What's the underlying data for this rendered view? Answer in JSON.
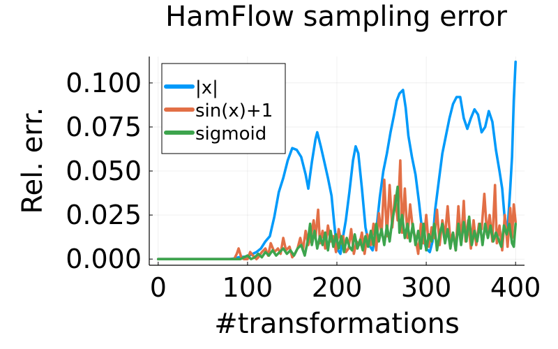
{
  "chart_data": {
    "type": "line",
    "title": "HamFlow sampling error",
    "xlabel": "#transformations",
    "ylabel": "Rel. err.",
    "xlim": [
      -10,
      410
    ],
    "ylim": [
      -0.0035,
      0.115
    ],
    "xticks": [
      0,
      100,
      200,
      300,
      400
    ],
    "xtick_labels": [
      "0",
      "100",
      "200",
      "300",
      "400"
    ],
    "yticks": [
      0.0,
      0.025,
      0.05,
      0.075,
      0.1
    ],
    "ytick_labels": [
      "0.000",
      "0.025",
      "0.050",
      "0.075",
      "0.100"
    ],
    "grid": true,
    "legend_position": "top-left",
    "series": [
      {
        "name": "|x|",
        "color": "#009AFA",
        "points": [
          [
            0,
            0.0
          ],
          [
            80,
            0.0
          ],
          [
            85,
            0.0003
          ],
          [
            90,
            0.001
          ],
          [
            100,
            0.0015
          ],
          [
            110,
            0.004
          ],
          [
            115,
            0.006
          ],
          [
            120,
            0.01
          ],
          [
            125,
            0.013
          ],
          [
            130,
            0.024
          ],
          [
            135,
            0.038
          ],
          [
            140,
            0.046
          ],
          [
            145,
            0.056
          ],
          [
            150,
            0.063
          ],
          [
            155,
            0.062
          ],
          [
            160,
            0.058
          ],
          [
            165,
            0.048
          ],
          [
            168,
            0.04
          ],
          [
            172,
            0.055
          ],
          [
            176,
            0.068
          ],
          [
            178,
            0.072
          ],
          [
            182,
            0.064
          ],
          [
            186,
            0.055
          ],
          [
            190,
            0.046
          ],
          [
            194,
            0.036
          ],
          [
            197,
            0.02
          ],
          [
            200,
            0.006
          ],
          [
            204,
            0.003
          ],
          [
            206,
            0.01
          ],
          [
            210,
            0.022
          ],
          [
            214,
            0.038
          ],
          [
            218,
            0.056
          ],
          [
            221,
            0.064
          ],
          [
            224,
            0.06
          ],
          [
            228,
            0.04
          ],
          [
            232,
            0.018
          ],
          [
            236,
            0.008
          ],
          [
            240,
            0.005
          ],
          [
            244,
            0.016
          ],
          [
            248,
            0.035
          ],
          [
            252,
            0.05
          ],
          [
            256,
            0.06
          ],
          [
            260,
            0.072
          ],
          [
            264,
            0.082
          ],
          [
            267,
            0.09
          ],
          [
            270,
            0.094
          ],
          [
            274,
            0.096
          ],
          [
            277,
            0.086
          ],
          [
            280,
            0.07
          ],
          [
            284,
            0.058
          ],
          [
            288,
            0.048
          ],
          [
            292,
            0.032
          ],
          [
            295,
            0.018
          ],
          [
            298,
            0.01
          ],
          [
            300,
            0.006
          ],
          [
            304,
            0.004
          ],
          [
            307,
            0.01
          ],
          [
            310,
            0.028
          ],
          [
            314,
            0.044
          ],
          [
            318,
            0.06
          ],
          [
            322,
            0.07
          ],
          [
            326,
            0.08
          ],
          [
            330,
            0.088
          ],
          [
            334,
            0.092
          ],
          [
            338,
            0.092
          ],
          [
            342,
            0.08
          ],
          [
            346,
            0.074
          ],
          [
            350,
            0.08
          ],
          [
            354,
            0.085
          ],
          [
            358,
            0.082
          ],
          [
            362,
            0.072
          ],
          [
            366,
            0.075
          ],
          [
            370,
            0.084
          ],
          [
            374,
            0.078
          ],
          [
            378,
            0.062
          ],
          [
            382,
            0.05
          ],
          [
            385,
            0.04
          ],
          [
            388,
            0.022
          ],
          [
            390,
            0.014
          ],
          [
            392,
            0.024
          ],
          [
            394,
            0.04
          ],
          [
            396,
            0.058
          ],
          [
            398,
            0.09
          ],
          [
            400,
            0.112
          ]
        ]
      },
      {
        "name": "sin(x)+1",
        "color": "#E26F46",
        "points": [
          [
            0,
            0.0
          ],
          [
            85,
            0.0
          ],
          [
            88,
            0.003
          ],
          [
            90,
            0.006
          ],
          [
            93,
            0.001
          ],
          [
            96,
            0.0
          ],
          [
            100,
            0.0
          ],
          [
            103,
            0.004
          ],
          [
            106,
            0.002
          ],
          [
            110,
            0.0
          ],
          [
            112,
            0.001
          ],
          [
            116,
            0.004
          ],
          [
            120,
            0.006
          ],
          [
            123,
            0.002
          ],
          [
            126,
            0.009
          ],
          [
            130,
            0.004
          ],
          [
            134,
            0.006
          ],
          [
            137,
            0.003
          ],
          [
            140,
            0.012
          ],
          [
            143,
            0.005
          ],
          [
            147,
            0.007
          ],
          [
            150,
            0.001
          ],
          [
            153,
            0.003
          ],
          [
            156,
            0.006
          ],
          [
            159,
            0.012
          ],
          [
            162,
            0.005
          ],
          [
            165,
            0.016
          ],
          [
            168,
            0.008
          ],
          [
            171,
            0.013
          ],
          [
            174,
            0.022
          ],
          [
            176,
            0.012
          ],
          [
            179,
            0.028
          ],
          [
            181,
            0.009
          ],
          [
            184,
            0.016
          ],
          [
            187,
            0.006
          ],
          [
            190,
            0.019
          ],
          [
            193,
            0.01
          ],
          [
            196,
            0.013
          ],
          [
            199,
            0.004
          ],
          [
            202,
            0.017
          ],
          [
            205,
            0.009
          ],
          [
            207,
            0.013
          ],
          [
            210,
            0.004
          ],
          [
            213,
            0.006
          ],
          [
            216,
            0.017
          ],
          [
            219,
            0.003
          ],
          [
            222,
            0.01
          ],
          [
            225,
            0.008
          ],
          [
            228,
            0.015
          ],
          [
            231,
            0.003
          ],
          [
            234,
            0.014
          ],
          [
            236,
            0.01
          ],
          [
            238,
            0.008
          ],
          [
            241,
            0.02
          ],
          [
            244,
            0.005
          ],
          [
            247,
            0.026
          ],
          [
            250,
            0.014
          ],
          [
            253,
            0.045
          ],
          [
            256,
            0.013
          ],
          [
            259,
            0.042
          ],
          [
            262,
            0.018
          ],
          [
            265,
            0.036
          ],
          [
            268,
            0.022
          ],
          [
            271,
            0.056
          ],
          [
            273,
            0.015
          ],
          [
            276,
            0.04
          ],
          [
            279,
            0.012
          ],
          [
            282,
            0.031
          ],
          [
            285,
            0.017
          ],
          [
            288,
            0.012
          ],
          [
            291,
            0.003
          ],
          [
            294,
            0.02
          ],
          [
            297,
            0.009
          ],
          [
            300,
            0.025
          ],
          [
            303,
            0.007
          ],
          [
            306,
            0.018
          ],
          [
            309,
            0.012
          ],
          [
            312,
            0.028
          ],
          [
            315,
            0.008
          ],
          [
            318,
            0.022
          ],
          [
            321,
            0.013
          ],
          [
            324,
            0.03
          ],
          [
            327,
            0.01
          ],
          [
            330,
            0.015
          ],
          [
            333,
            0.005
          ],
          [
            336,
            0.03
          ],
          [
            339,
            0.009
          ],
          [
            342,
            0.033
          ],
          [
            344,
            0.01
          ],
          [
            347,
            0.022
          ],
          [
            350,
            0.006
          ],
          [
            353,
            0.022
          ],
          [
            356,
            0.008
          ],
          [
            359,
            0.02
          ],
          [
            362,
            0.017
          ],
          [
            365,
            0.037
          ],
          [
            368,
            0.014
          ],
          [
            371,
            0.025
          ],
          [
            374,
            0.01
          ],
          [
            377,
            0.042
          ],
          [
            379,
            0.009
          ],
          [
            382,
            0.019
          ],
          [
            385,
            0.005
          ],
          [
            388,
            0.025
          ],
          [
            391,
            0.007
          ],
          [
            394,
            0.029
          ],
          [
            396,
            0.012
          ],
          [
            398,
            0.031
          ],
          [
            400,
            0.021
          ]
        ]
      },
      {
        "name": "sigmoid",
        "color": "#3DA44D",
        "points": [
          [
            0,
            0.0
          ],
          [
            92,
            0.0
          ],
          [
            96,
            0.001
          ],
          [
            100,
            0.002
          ],
          [
            104,
            0.0
          ],
          [
            108,
            0.001
          ],
          [
            112,
            0.003
          ],
          [
            116,
            0.001
          ],
          [
            120,
            0.004
          ],
          [
            124,
            0.002
          ],
          [
            128,
            0.005
          ],
          [
            132,
            0.002
          ],
          [
            136,
            0.004
          ],
          [
            140,
            0.006
          ],
          [
            144,
            0.003
          ],
          [
            148,
            0.005
          ],
          [
            152,
            0.002
          ],
          [
            156,
            0.006
          ],
          [
            160,
            0.008
          ],
          [
            164,
            0.002
          ],
          [
            168,
            0.012
          ],
          [
            170,
            0.02
          ],
          [
            172,
            0.008
          ],
          [
            175,
            0.016
          ],
          [
            178,
            0.006
          ],
          [
            181,
            0.013
          ],
          [
            184,
            0.008
          ],
          [
            187,
            0.015
          ],
          [
            190,
            0.005
          ],
          [
            193,
            0.016
          ],
          [
            196,
            0.007
          ],
          [
            199,
            0.014
          ],
          [
            202,
            0.006
          ],
          [
            205,
            0.013
          ],
          [
            208,
            0.004
          ],
          [
            211,
            0.012
          ],
          [
            214,
            0.007
          ],
          [
            217,
            0.005
          ],
          [
            220,
            0.014
          ],
          [
            223,
            0.006
          ],
          [
            226,
            0.011
          ],
          [
            229,
            0.005
          ],
          [
            232,
            0.013
          ],
          [
            235,
            0.007
          ],
          [
            238,
            0.016
          ],
          [
            241,
            0.008
          ],
          [
            244,
            0.02
          ],
          [
            247,
            0.01
          ],
          [
            250,
            0.017
          ],
          [
            253,
            0.008
          ],
          [
            256,
            0.019
          ],
          [
            259,
            0.01
          ],
          [
            262,
            0.022
          ],
          [
            265,
            0.03
          ],
          [
            268,
            0.041
          ],
          [
            270,
            0.015
          ],
          [
            273,
            0.025
          ],
          [
            276,
            0.012
          ],
          [
            279,
            0.02
          ],
          [
            282,
            0.01
          ],
          [
            285,
            0.02
          ],
          [
            288,
            0.008
          ],
          [
            291,
            0.016
          ],
          [
            294,
            0.006
          ],
          [
            297,
            0.02
          ],
          [
            300,
            0.005
          ],
          [
            303,
            0.014
          ],
          [
            306,
            0.01
          ],
          [
            309,
            0.02
          ],
          [
            312,
            0.005
          ],
          [
            315,
            0.014
          ],
          [
            318,
            0.02
          ],
          [
            321,
            0.009
          ],
          [
            324,
            0.017
          ],
          [
            327,
            0.006
          ],
          [
            330,
            0.015
          ],
          [
            333,
            0.005
          ],
          [
            336,
            0.02
          ],
          [
            339,
            0.008
          ],
          [
            342,
            0.021
          ],
          [
            345,
            0.01
          ],
          [
            348,
            0.024
          ],
          [
            351,
            0.008
          ],
          [
            354,
            0.016
          ],
          [
            357,
            0.01
          ],
          [
            360,
            0.02
          ],
          [
            363,
            0.008
          ],
          [
            366,
            0.02
          ],
          [
            369,
            0.012
          ],
          [
            372,
            0.019
          ],
          [
            375,
            0.01
          ],
          [
            378,
            0.015
          ],
          [
            381,
            0.011
          ],
          [
            384,
            0.007
          ],
          [
            387,
            0.019
          ],
          [
            390,
            0.014
          ],
          [
            393,
            0.02
          ],
          [
            396,
            0.009
          ],
          [
            398,
            0.007
          ],
          [
            400,
            0.02
          ]
        ]
      }
    ]
  }
}
